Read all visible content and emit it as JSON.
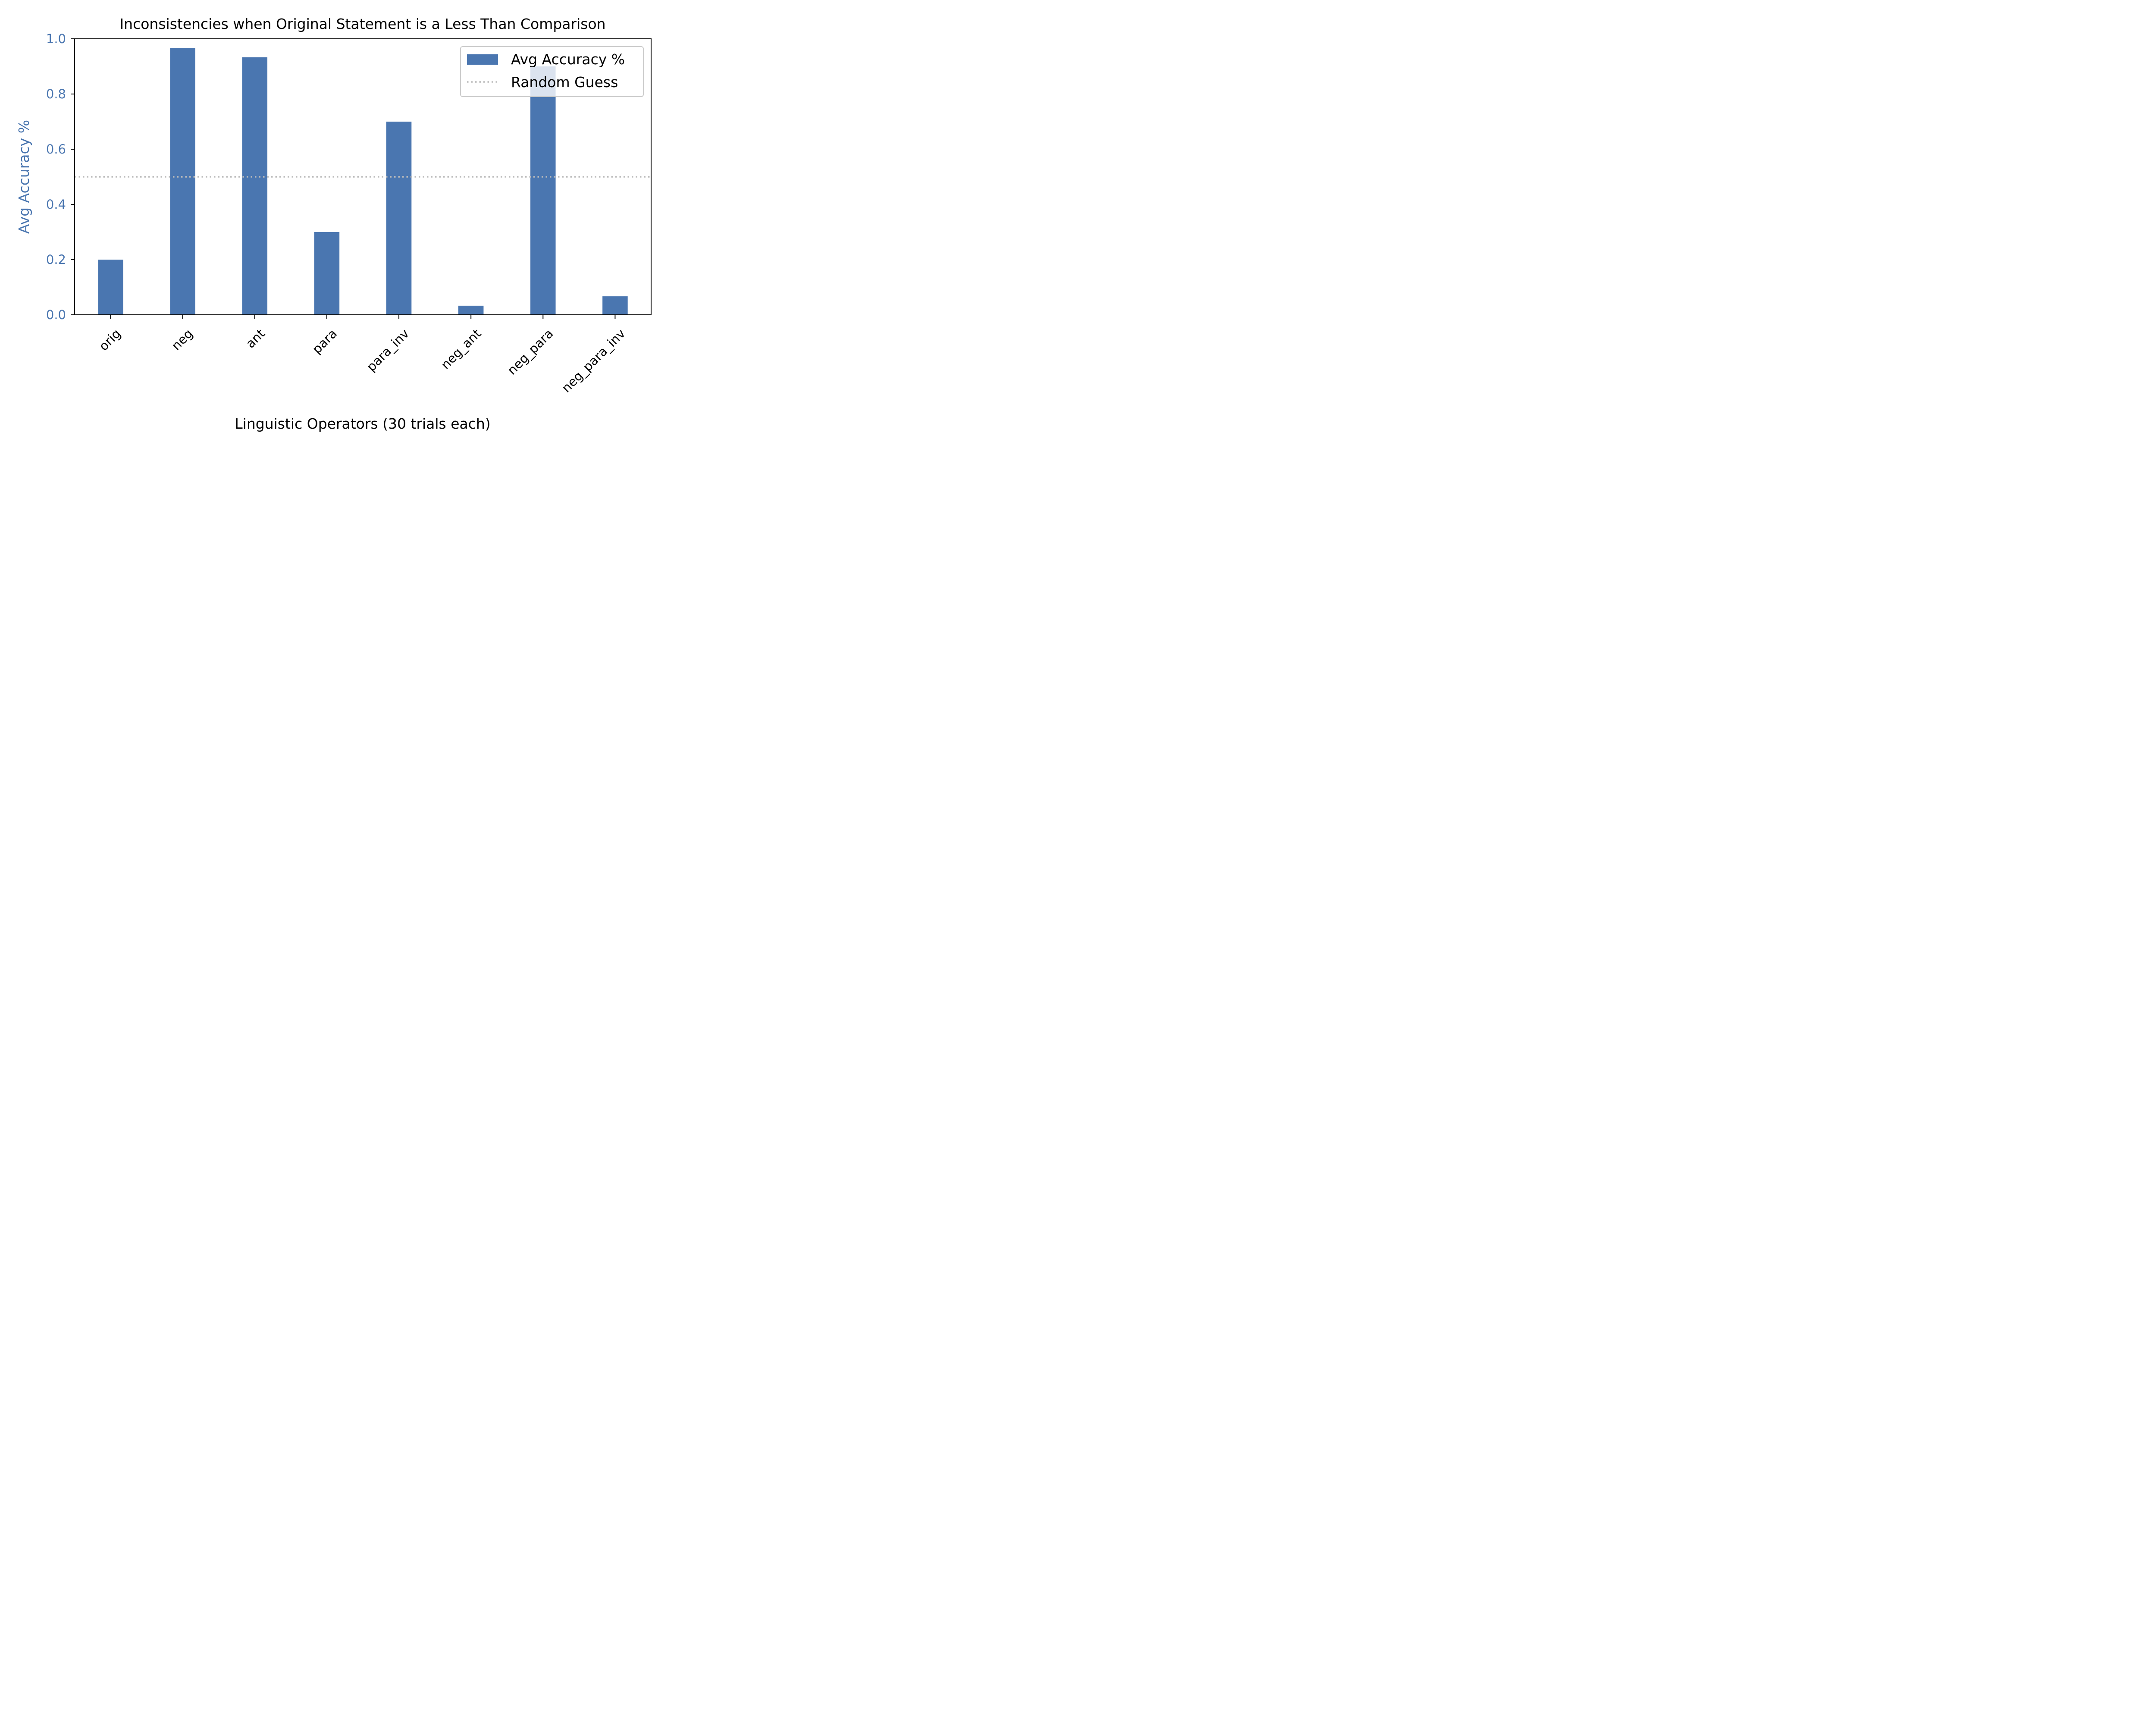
{
  "chart_data": {
    "type": "bar",
    "title": "Inconsistencies when Original Statement is a Less Than Comparison",
    "xlabel": "Linguistic Operators (30 trials each)",
    "ylabel": "Avg Accuracy %",
    "categories": [
      "orig",
      "neg",
      "ant",
      "para",
      "para_inv",
      "neg_ant",
      "neg_para",
      "neg_para_inv"
    ],
    "series": [
      {
        "name": "Avg Accuracy %",
        "values": [
          0.2,
          0.967,
          0.933,
          0.3,
          0.7,
          0.033,
          0.9,
          0.067
        ],
        "color": "#4a76b0"
      }
    ],
    "reference_line": {
      "name": "Random Guess",
      "value": 0.5,
      "style": "dotted",
      "color": "#bbbbbb"
    },
    "ylim": [
      0.0,
      1.0
    ],
    "yticks": [
      "0.0",
      "0.2",
      "0.4",
      "0.6",
      "0.8",
      "1.0"
    ],
    "ytick_values": [
      0.0,
      0.2,
      0.4,
      0.6,
      0.8,
      1.0
    ],
    "ylabel_color": "#4a76b0",
    "grid": false,
    "legend_position": "top-right"
  }
}
